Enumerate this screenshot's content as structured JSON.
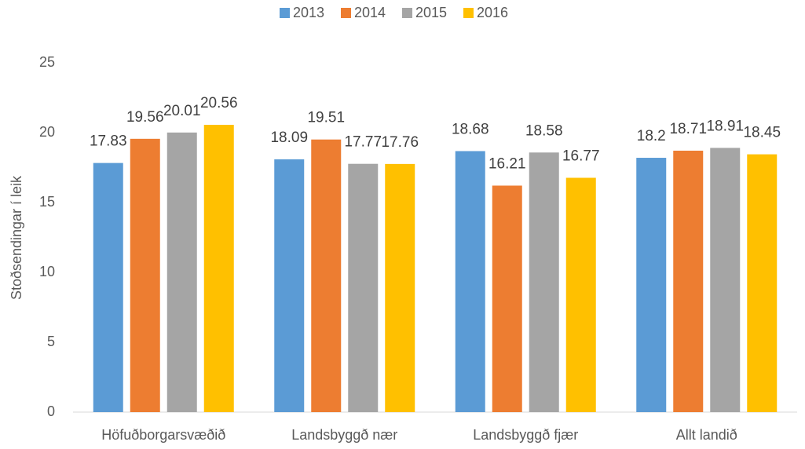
{
  "chart_data": {
    "type": "bar",
    "y_label": "Stoðsendingar í leik",
    "categories": [
      "Höfuðborgarsvæðið",
      "Landsbyggð nær",
      "Landsbyggð fjær",
      "Allt landið"
    ],
    "series": [
      {
        "name": "2013",
        "color": "#5b9bd5",
        "values": [
          17.83,
          18.09,
          18.68,
          18.2
        ]
      },
      {
        "name": "2014",
        "color": "#ed7d31",
        "values": [
          19.56,
          19.51,
          16.21,
          18.71
        ]
      },
      {
        "name": "2015",
        "color": "#a5a5a5",
        "values": [
          20.01,
          17.77,
          18.58,
          18.91
        ]
      },
      {
        "name": "2016",
        "color": "#ffc000",
        "values": [
          20.56,
          17.76,
          16.77,
          18.45
        ]
      }
    ],
    "ylim": [
      0,
      25
    ],
    "yticks": [
      0,
      5,
      10,
      15,
      20,
      25
    ],
    "grid": false,
    "legend": "top"
  }
}
